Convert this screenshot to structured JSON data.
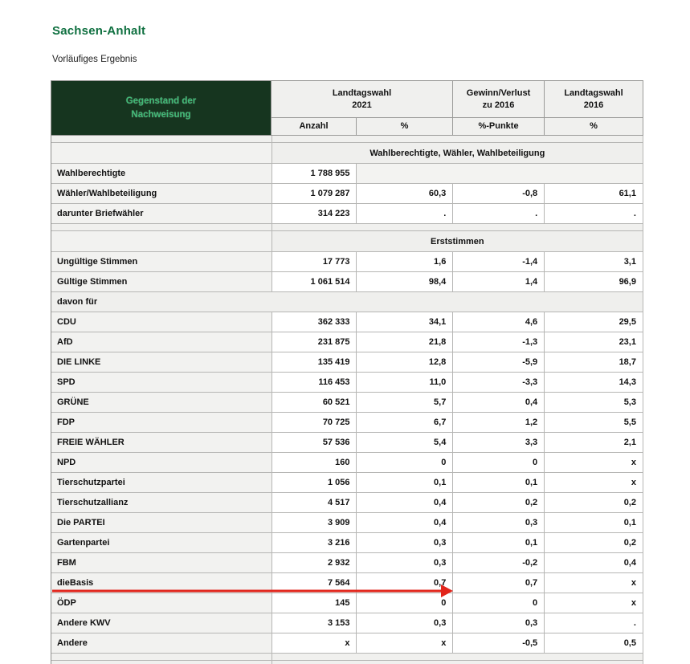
{
  "page": {
    "title": "Sachsen-Anhalt",
    "subtitle": "Vorläufiges Ergebnis"
  },
  "colors": {
    "title_green": "#0f7040",
    "header_bg": "#16351f",
    "header_text": "#3fba76",
    "arrow_red": "#e2251b",
    "section_gray": "#efefed",
    "label_gray": "#f2f2f0"
  },
  "table": {
    "header": {
      "col0": "Gegenstand der\nNachweisung",
      "group_2021": "Landtagswahl\n2021",
      "group_diff": "Gewinn/Verlust\nzu 2016",
      "group_2016": "Landtagswahl\n2016",
      "units": [
        "Anzahl",
        "%",
        "%-Punkte",
        "%"
      ]
    },
    "rows": [
      {
        "type": "spacer",
        "cells": [
          "",
          ""
        ]
      },
      {
        "type": "section",
        "cells": [
          "",
          "Wahlberechtigte, Wähler, Wahlbeteiligung"
        ]
      },
      {
        "type": "data",
        "merged": true,
        "cells": [
          "Wahlberechtigte",
          "1 788 955",
          "",
          "",
          ""
        ]
      },
      {
        "type": "data",
        "cells": [
          "Wähler/Wahlbeteiligung",
          "1 079 287",
          "60,3",
          "-0,8",
          "61,1"
        ]
      },
      {
        "type": "data",
        "cells": [
          "darunter Briefwähler",
          "314 223",
          ".",
          ".",
          "."
        ]
      },
      {
        "type": "spacer",
        "cells": [
          "",
          ""
        ]
      },
      {
        "type": "section",
        "cells": [
          "",
          "Erststimmen"
        ]
      },
      {
        "type": "data",
        "cells": [
          "Ungültige Stimmen",
          "17 773",
          "1,6",
          "-1,4",
          "3,1"
        ]
      },
      {
        "type": "data",
        "cells": [
          "Gültige Stimmen",
          "1 061 514",
          "98,4",
          "1,4",
          "96,9"
        ]
      },
      {
        "type": "subheader",
        "cells": [
          "davon für"
        ]
      },
      {
        "type": "data",
        "cells": [
          "CDU",
          "362 333",
          "34,1",
          "4,6",
          "29,5"
        ]
      },
      {
        "type": "data",
        "cells": [
          "AfD",
          "231 875",
          "21,8",
          "-1,3",
          "23,1"
        ]
      },
      {
        "type": "data",
        "cells": [
          "DIE LINKE",
          "135 419",
          "12,8",
          "-5,9",
          "18,7"
        ]
      },
      {
        "type": "data",
        "cells": [
          "SPD",
          "116 453",
          "11,0",
          "-3,3",
          "14,3"
        ]
      },
      {
        "type": "data",
        "cells": [
          "GRÜNE",
          "60 521",
          "5,7",
          "0,4",
          "5,3"
        ]
      },
      {
        "type": "data",
        "cells": [
          "FDP",
          "70 725",
          "6,7",
          "1,2",
          "5,5"
        ]
      },
      {
        "type": "data",
        "cells": [
          "FREIE WÄHLER",
          "57 536",
          "5,4",
          "3,3",
          "2,1"
        ]
      },
      {
        "type": "data",
        "cells": [
          "NPD",
          "160",
          "0",
          "0",
          "x"
        ]
      },
      {
        "type": "data",
        "cells": [
          "Tierschutzpartei",
          "1 056",
          "0,1",
          "0,1",
          "x"
        ]
      },
      {
        "type": "data",
        "cells": [
          "Tierschutzallianz",
          "4 517",
          "0,4",
          "0,2",
          "0,2"
        ]
      },
      {
        "type": "data",
        "cells": [
          "Die PARTEI",
          "3 909",
          "0,4",
          "0,3",
          "0,1"
        ]
      },
      {
        "type": "data",
        "cells": [
          "Gartenpartei",
          "3 216",
          "0,3",
          "0,1",
          "0,2"
        ]
      },
      {
        "type": "data",
        "cells": [
          "FBM",
          "2 932",
          "0,3",
          "-0,2",
          "0,4"
        ]
      },
      {
        "type": "data",
        "highlight": "red-arrow",
        "cells": [
          "dieBasis",
          "7 564",
          "0,7",
          "0,7",
          "x"
        ]
      },
      {
        "type": "data",
        "cells": [
          "ÖDP",
          "145",
          "0",
          "0",
          "x"
        ]
      },
      {
        "type": "data",
        "cells": [
          "Andere KWV",
          "3 153",
          "0,3",
          "0,3",
          "."
        ]
      },
      {
        "type": "data",
        "cells": [
          "Andere",
          "x",
          "x",
          "-0,5",
          "0,5"
        ]
      },
      {
        "type": "spacer",
        "cells": [
          "",
          ""
        ]
      },
      {
        "type": "partial",
        "cells": [
          "",
          ""
        ]
      }
    ]
  },
  "annotation": {
    "type": "arrow",
    "description": "red arrow underlining dieBasis row pointing right",
    "color": "#e2251b"
  }
}
